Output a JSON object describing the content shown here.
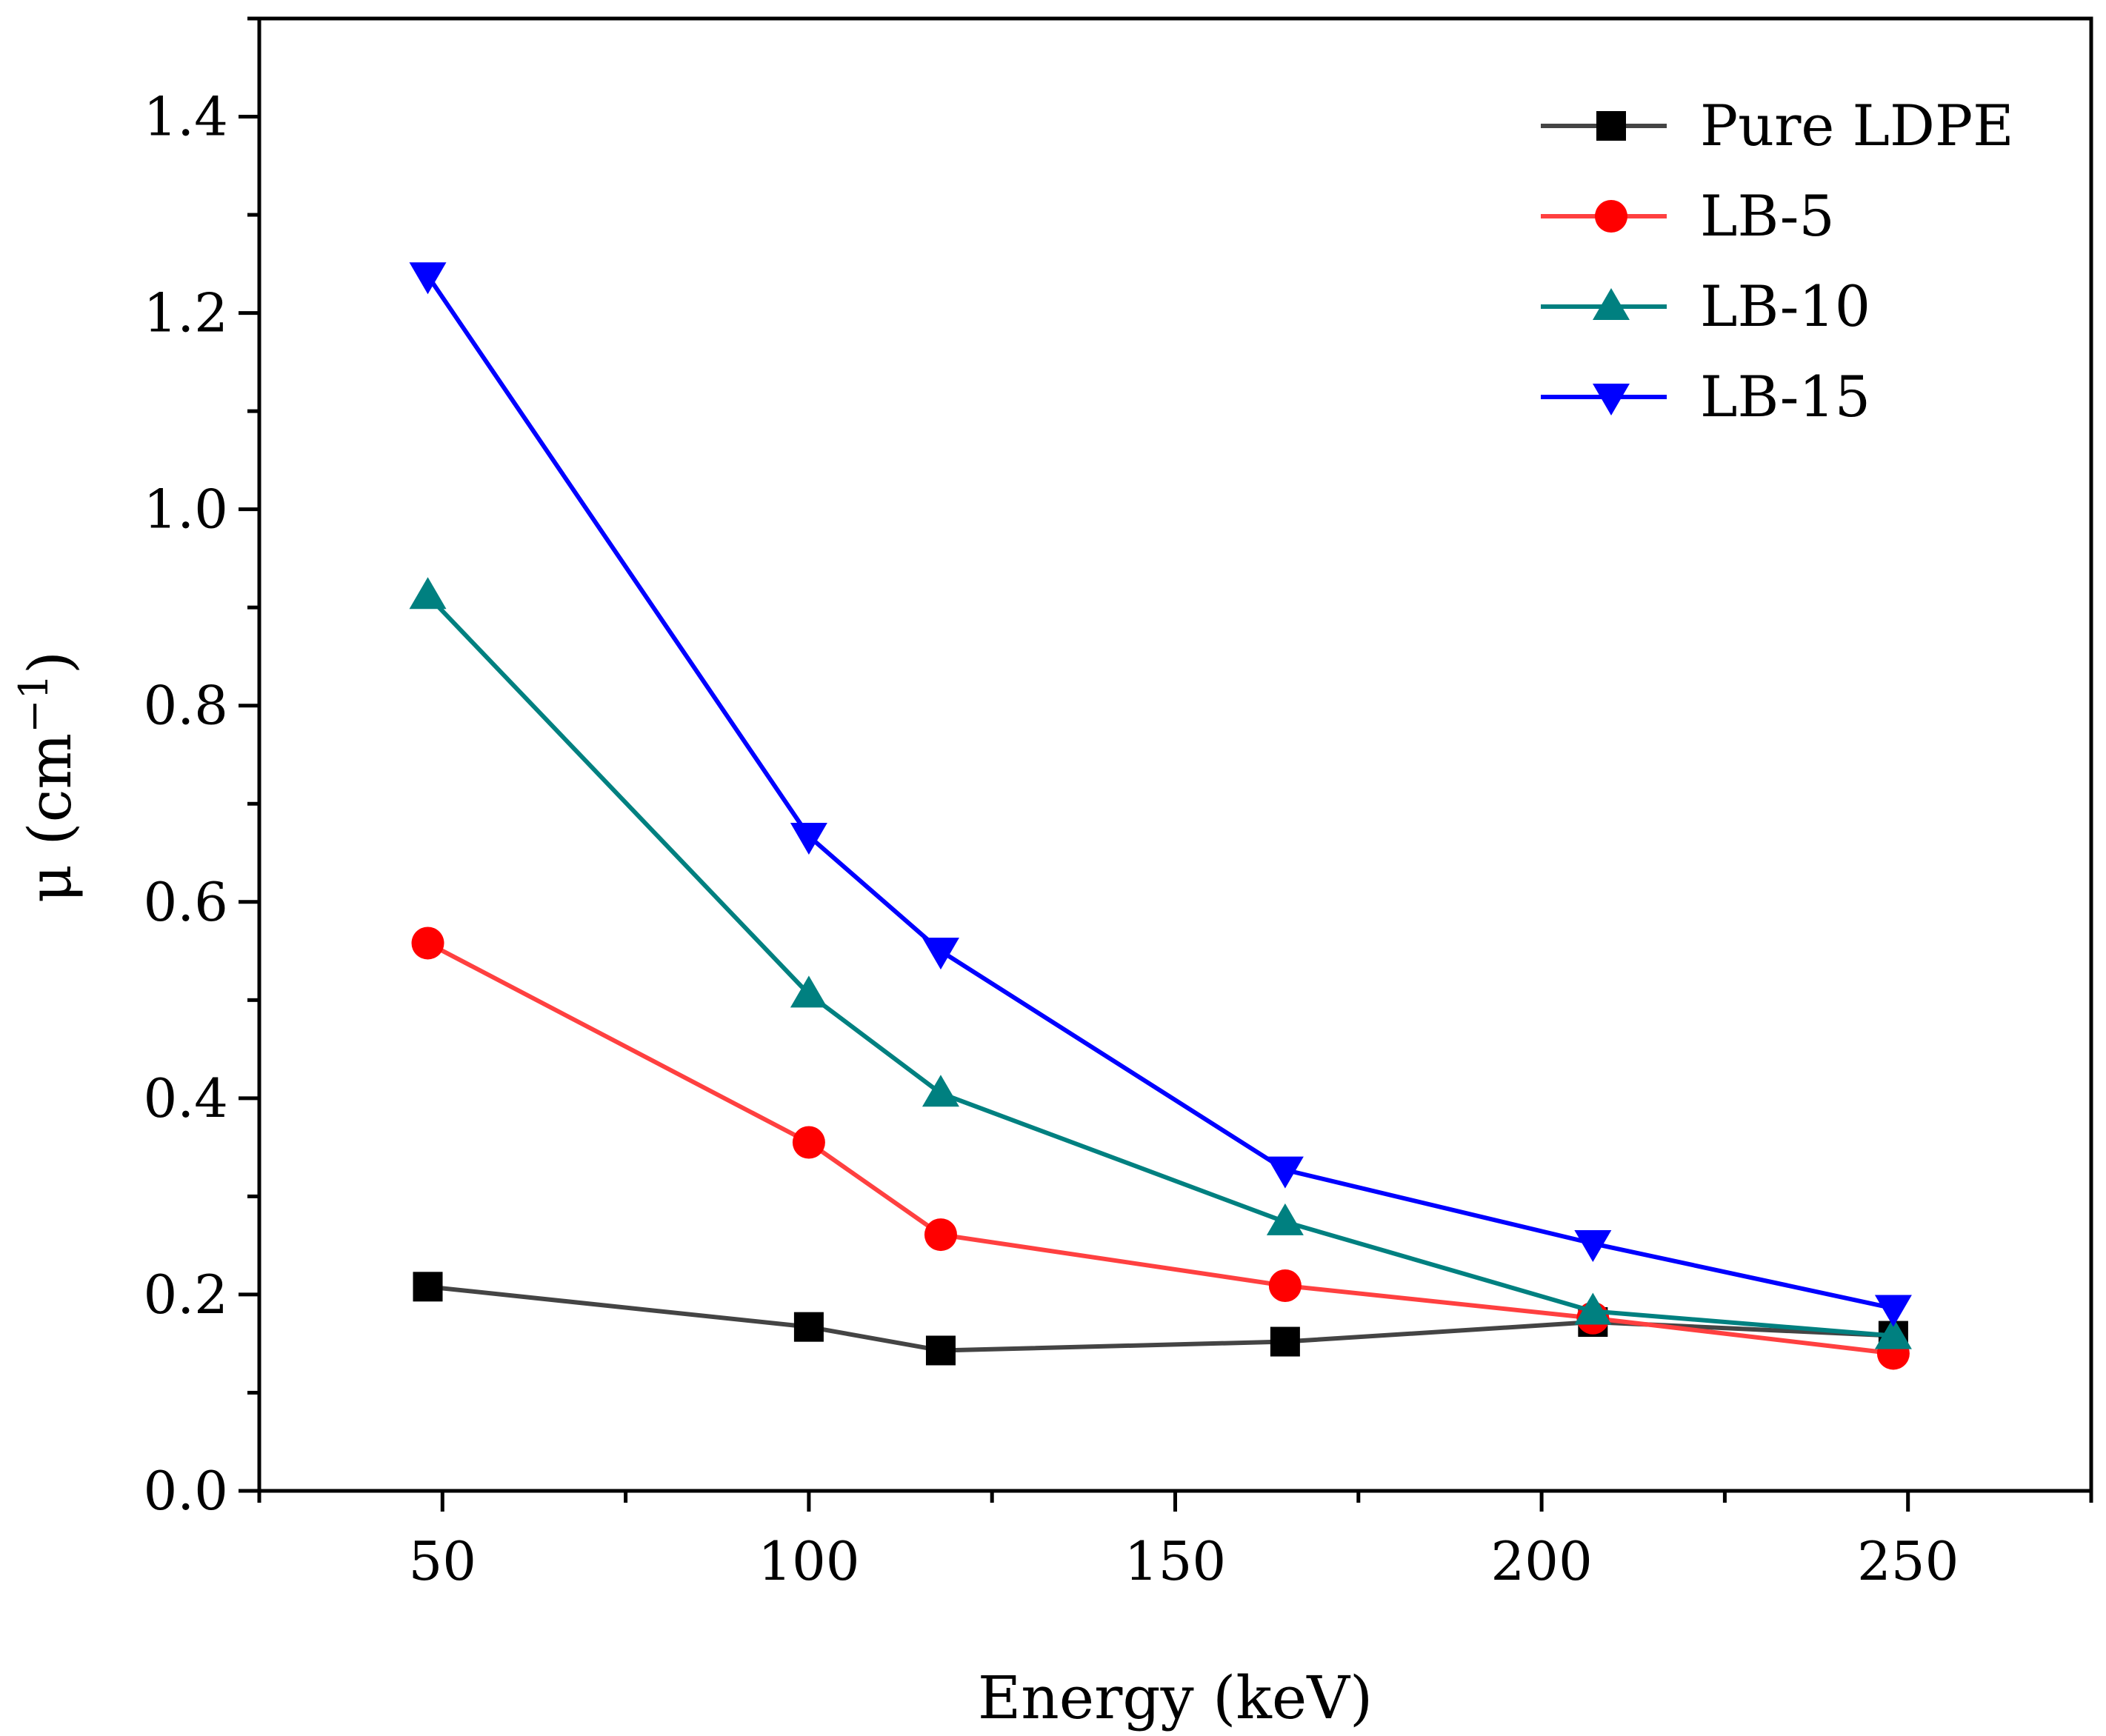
{
  "chart_data": {
    "type": "line",
    "title": "",
    "xlabel": "Energy (keV)",
    "ylabel": {
      "main": "μ (cm",
      "sup": "−1",
      "close": ")"
    },
    "xlim": [
      25,
      275
    ],
    "ylim": [
      0,
      1.5
    ],
    "x_ticks": [
      50,
      100,
      150,
      200,
      250
    ],
    "x_tick_labels": [
      "50",
      "100",
      "150",
      "200",
      "250"
    ],
    "y_ticks": [
      0,
      0.2,
      0.4,
      0.6,
      0.8,
      1.0,
      1.2,
      1.4
    ],
    "y_tick_labels": [
      "0.0",
      "0.2",
      "0.4",
      "0.6",
      "0.8",
      "1.0",
      "1.2",
      "1.4"
    ],
    "grid": false,
    "legend_position": "top-right",
    "x": [
      48,
      100,
      118,
      165,
      207,
      248
    ],
    "series": [
      {
        "name": "Pure LDPE",
        "color": "#000000",
        "line_color": "#444444",
        "marker": "square",
        "values": [
          0.208,
          0.167,
          0.143,
          0.152,
          0.172,
          0.158
        ]
      },
      {
        "name": "LB-5",
        "color": "#ff0000",
        "line_color": "#ff4040",
        "marker": "circle",
        "values": [
          0.558,
          0.355,
          0.261,
          0.209,
          0.176,
          0.14
        ]
      },
      {
        "name": "LB-10",
        "color": "#008080",
        "line_color": "#008080",
        "marker": "triangle-up",
        "values": [
          0.912,
          0.506,
          0.405,
          0.274,
          0.183,
          0.158
        ]
      },
      {
        "name": "LB-15",
        "color": "#0000ff",
        "line_color": "#0000ff",
        "marker": "triangle-down",
        "values": [
          1.238,
          0.667,
          0.55,
          0.327,
          0.252,
          0.186
        ]
      }
    ]
  }
}
